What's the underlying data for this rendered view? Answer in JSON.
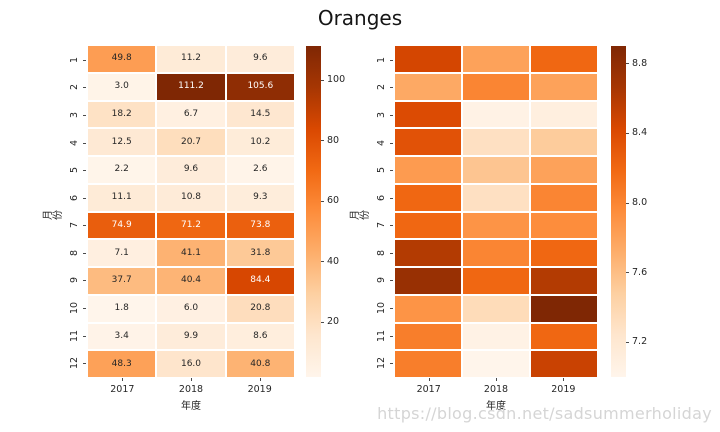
{
  "title": "Oranges",
  "watermark": "https://blog.csdn.net/sadsummerholiday",
  "colors": {
    "background": "#ffffff",
    "text_dark": "#262626",
    "annotation_light": "#ffffff",
    "watermark": "#d5d5d5",
    "colormap_name": "Oranges",
    "colormap_stops": [
      "#fff5eb",
      "#fee6ce",
      "#fdd0a2",
      "#fdae6b",
      "#fd8d3c",
      "#f16913",
      "#d94801",
      "#a63603",
      "#7f2704"
    ]
  },
  "chart_data": [
    {
      "type": "heatmap",
      "title": "Oranges",
      "xlabel": "年度",
      "ylabel": "月份",
      "columns": [
        "2017",
        "2018",
        "2019"
      ],
      "rows": [
        "1",
        "2",
        "3",
        "4",
        "5",
        "6",
        "7",
        "8",
        "9",
        "10",
        "11",
        "12"
      ],
      "values": [
        [
          49.8,
          11.2,
          9.6
        ],
        [
          3.0,
          111.2,
          105.6
        ],
        [
          18.2,
          6.7,
          14.5
        ],
        [
          12.5,
          20.7,
          10.2
        ],
        [
          2.2,
          9.6,
          2.6
        ],
        [
          11.1,
          10.8,
          9.3
        ],
        [
          74.9,
          71.2,
          73.8
        ],
        [
          7.1,
          41.1,
          31.8
        ],
        [
          37.7,
          40.4,
          84.4
        ],
        [
          1.8,
          6.0,
          20.8
        ],
        [
          3.4,
          9.9,
          8.6
        ],
        [
          48.3,
          16.0,
          40.8
        ]
      ],
      "vmin": 1.8,
      "vmax": 111.2,
      "annotated": true,
      "colormap": "Oranges",
      "colorbar_ticks": [
        20,
        40,
        60,
        80,
        100
      ],
      "colorbar_tick_labels": [
        "20",
        "40",
        "60",
        "80",
        "100"
      ],
      "legend_position": "right-colorbar",
      "grid": false
    },
    {
      "type": "heatmap",
      "title": "Oranges",
      "xlabel": "年度",
      "ylabel": "月份",
      "columns": [
        "2017",
        "2018",
        "2019"
      ],
      "rows": [
        "1",
        "2",
        "3",
        "4",
        "5",
        "6",
        "7",
        "8",
        "9",
        "10",
        "11",
        "12"
      ],
      "values": [
        [
          8.45,
          7.8,
          8.2
        ],
        [
          7.75,
          8.0,
          7.8
        ],
        [
          8.4,
          7.05,
          7.1
        ],
        [
          8.35,
          7.3,
          7.5
        ],
        [
          7.85,
          7.55,
          7.8
        ],
        [
          8.2,
          7.3,
          8.0
        ],
        [
          8.2,
          7.9,
          7.95
        ],
        [
          8.6,
          8.0,
          8.2
        ],
        [
          8.75,
          8.2,
          8.6
        ],
        [
          7.9,
          7.35,
          8.9
        ],
        [
          8.05,
          7.05,
          8.2
        ],
        [
          8.05,
          7.0,
          8.5
        ]
      ],
      "vmin": 7.0,
      "vmax": 8.9,
      "annotated": false,
      "colormap": "Oranges",
      "colorbar_ticks": [
        7.2,
        7.6,
        8.0,
        8.4,
        8.8
      ],
      "colorbar_tick_labels": [
        "7.2",
        "7.6",
        "8.0",
        "8.4",
        "8.8"
      ],
      "legend_position": "right-colorbar",
      "grid": false
    }
  ]
}
